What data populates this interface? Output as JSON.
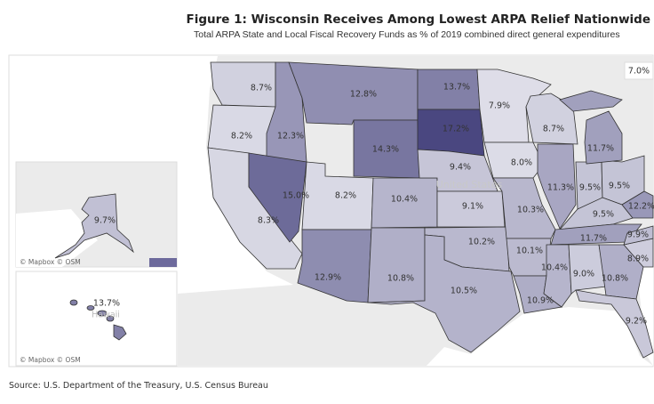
{
  "header": {
    "title": "Figure 1: Wisconsin Receives Among Lowest ARPA Relief Nationwide",
    "subtitle": "Total ARPA State and Local Fiscal Recovery Funds as % of 2019 combined direct general expenditures"
  },
  "map": {
    "country_label": "United States",
    "callout_value": "7.0%",
    "color_scale": {
      "min_value": 7.0,
      "max_value": 17.2,
      "min_color": "#ececf2",
      "max_color": "#4a4780"
    },
    "states": [
      {
        "id": "WA",
        "value": 8.7,
        "label": "8.7%"
      },
      {
        "id": "OR",
        "value": 8.2,
        "label": "8.2%"
      },
      {
        "id": "CA",
        "value": 8.3,
        "label": "8.3%"
      },
      {
        "id": "ID",
        "value": 12.3,
        "label": "12.3%"
      },
      {
        "id": "NV",
        "value": 15.0,
        "label": "15.0%"
      },
      {
        "id": "MT",
        "value": 12.8,
        "label": "12.8%"
      },
      {
        "id": "WY",
        "value": 14.3,
        "label": "14.3%"
      },
      {
        "id": "UT",
        "value": 8.2,
        "label": "8.2%"
      },
      {
        "id": "CO",
        "value": 10.4,
        "label": "10.4%"
      },
      {
        "id": "AZ",
        "value": 12.9,
        "label": "12.9%"
      },
      {
        "id": "NM",
        "value": 10.8,
        "label": "10.8%"
      },
      {
        "id": "ND",
        "value": 13.7,
        "label": "13.7%"
      },
      {
        "id": "SD",
        "value": 17.2,
        "label": "17.2%"
      },
      {
        "id": "NE",
        "value": 9.4,
        "label": "9.4%"
      },
      {
        "id": "KS",
        "value": 9.1,
        "label": "9.1%"
      },
      {
        "id": "OK",
        "value": 10.2,
        "label": "10.2%"
      },
      {
        "id": "TX",
        "value": 10.5,
        "label": "10.5%"
      },
      {
        "id": "MN",
        "value": 7.9,
        "label": "7.9%"
      },
      {
        "id": "IA",
        "value": 8.0,
        "label": "8.0%"
      },
      {
        "id": "MO",
        "value": 10.3,
        "label": "10.3%"
      },
      {
        "id": "AR",
        "value": 10.1,
        "label": "10.1%"
      },
      {
        "id": "LA",
        "value": 10.9,
        "label": "10.9%"
      },
      {
        "id": "WI",
        "value": 8.7,
        "label": "8.7%"
      },
      {
        "id": "IL",
        "value": 11.3,
        "label": "11.3%"
      },
      {
        "id": "IN",
        "value": 9.5,
        "label": "9.5%"
      },
      {
        "id": "OH",
        "value": 9.5,
        "label": "9.5%"
      },
      {
        "id": "MI",
        "value": 11.7,
        "label": "11.7%"
      },
      {
        "id": "KY",
        "value": 9.5,
        "label": "9.5%"
      },
      {
        "id": "WV",
        "value": 12.2,
        "label": "12.2%"
      },
      {
        "id": "TN",
        "value": 11.7,
        "label": "11.7%"
      },
      {
        "id": "MS",
        "value": 10.4,
        "label": "10.4%"
      },
      {
        "id": "AL",
        "value": 9.0,
        "label": "9.0%"
      },
      {
        "id": "GA",
        "value": 10.8,
        "label": "10.8%"
      },
      {
        "id": "SC",
        "value": 8.9,
        "label": "8.9%"
      },
      {
        "id": "NC",
        "value": 9.9,
        "label": "9.9%"
      },
      {
        "id": "FL",
        "value": 9.2,
        "label": "9.2%"
      }
    ],
    "insets": [
      {
        "id": "AK",
        "value": 9.7,
        "label": "9.7%",
        "credit": "© Mapbox  © OSM"
      },
      {
        "id": "HI",
        "value": 13.7,
        "label": "13.7%",
        "place": "Hawaii",
        "credit": "© Mapbox  © OSM"
      }
    ]
  },
  "footer": {
    "source": "Source: U.S. Department of the Treasury, U.S. Census Bureau"
  }
}
